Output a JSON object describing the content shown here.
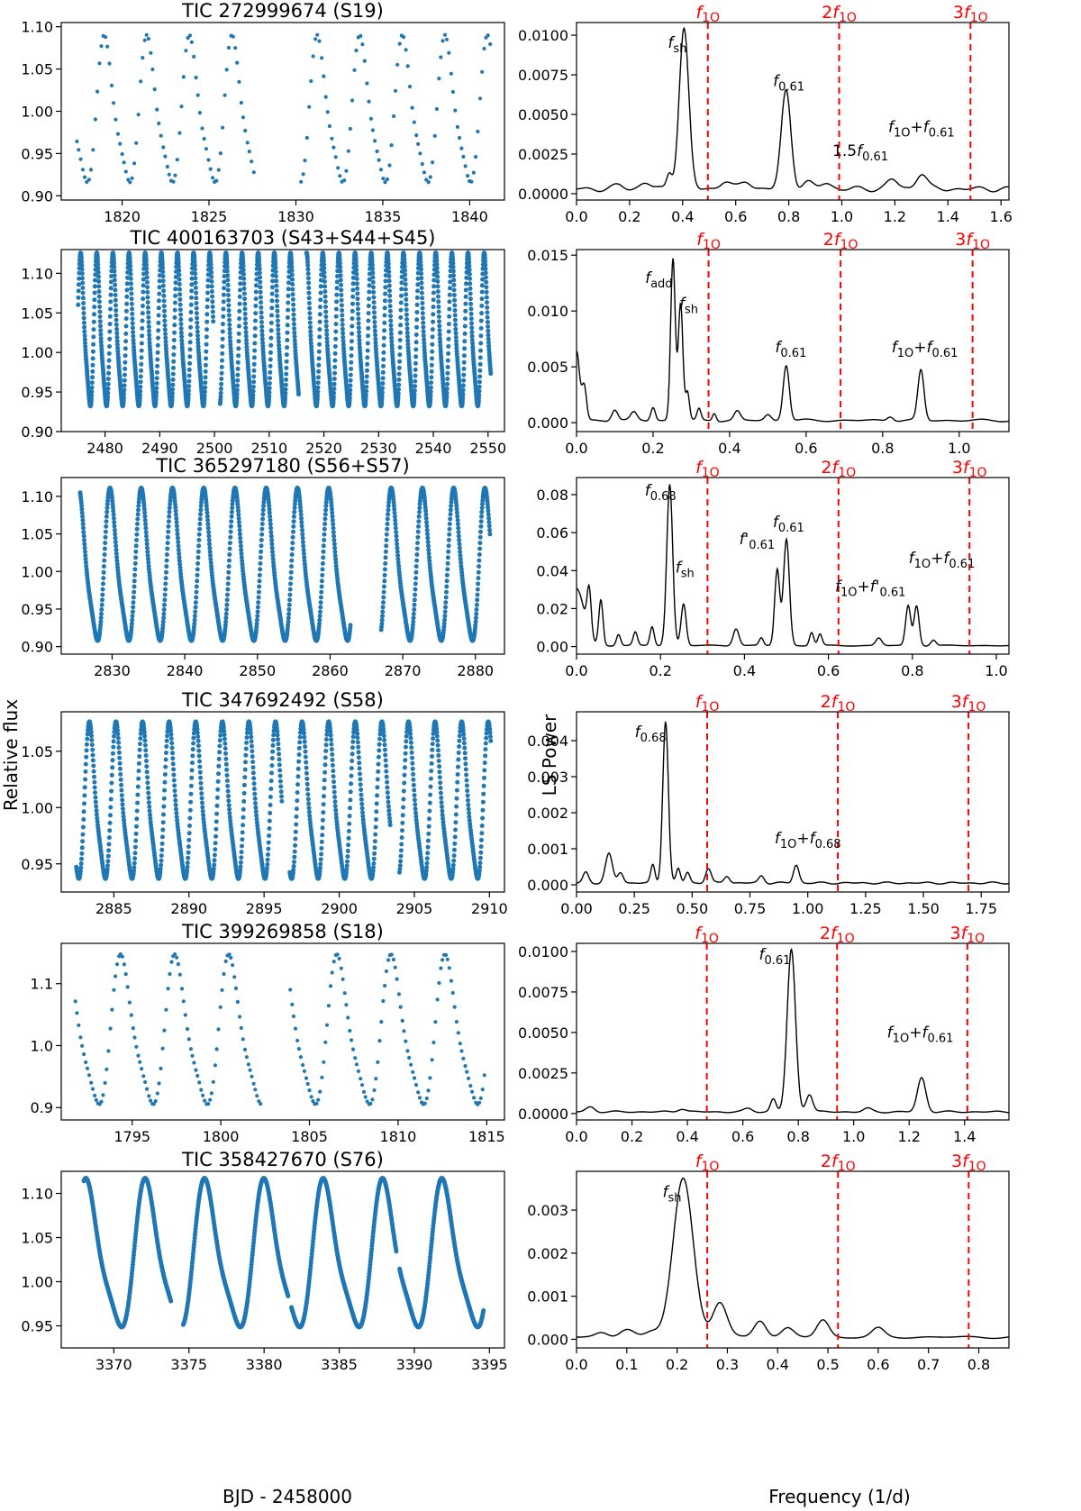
{
  "figure": {
    "ylabel_left": "Relative flux",
    "ylabel_right": "LS Power",
    "xlabel_left": "BJD - 2458000",
    "xlabel_right": "Frequency (1/d)",
    "point_color": "#1f77b4",
    "line_color": "#000000",
    "marker_color": "#ff0000"
  },
  "chart_data": [
    {
      "type": "scatter",
      "title": "TIC 272999674 (S19)",
      "xlim": [
        1816.5,
        1842
      ],
      "ylim": [
        0.895,
        1.105
      ],
      "xticks": [
        1820,
        1825,
        1830,
        1835,
        1840
      ],
      "yticks": [
        0.9,
        0.95,
        1.0,
        1.05,
        1.1
      ],
      "ytick_decimals": 2,
      "curve": {
        "t0": 1817.4,
        "t1": 1841.2,
        "period": 2.45,
        "mean": 0.995,
        "amp": 0.09,
        "phase": -1.4,
        "gaps": [
          [
            1827.6,
            1830.2
          ]
        ],
        "step": 0.12,
        "style": "sparse"
      }
    },
    {
      "type": "line",
      "title": "",
      "xlim": [
        0,
        1.63
      ],
      "ylim": [
        -0.0004,
        0.0108
      ],
      "xticks": [
        0,
        0.2,
        0.4,
        0.6,
        0.8,
        1.0,
        1.2,
        1.4,
        1.6
      ],
      "xtick_decimals": 1,
      "yticks": [
        0,
        0.0025,
        0.005,
        0.0075,
        0.01
      ],
      "ytick_decimals": 4,
      "baseline": 0.0003,
      "peaks": [
        [
          0.405,
          0.0101,
          0.018
        ],
        [
          0.79,
          0.0062,
          0.018
        ],
        [
          0.35,
          0.001,
          0.01
        ],
        [
          1.3,
          0.001,
          0.02
        ],
        [
          1.19,
          0.0006,
          0.02
        ],
        [
          0.56,
          0.0005,
          0.02
        ],
        [
          0.64,
          0.0005,
          0.02
        ],
        [
          0.87,
          0.0004,
          0.02
        ],
        [
          0.94,
          0.0004,
          0.02
        ],
        [
          0.26,
          0.0004,
          0.02
        ],
        [
          0.16,
          0.0002,
          0.02
        ]
      ],
      "markers": [
        0.495,
        0.99,
        1.485
      ],
      "marker_labels": [
        {
          "coef": "",
          "base": "f",
          "sub": "1O"
        },
        {
          "coef": "2",
          "base": "f",
          "sub": "1O"
        },
        {
          "coef": "3",
          "base": "f",
          "sub": "1O"
        }
      ],
      "annotations": [
        {
          "x": 0.38,
          "y": 0.0092,
          "parts": [
            {
              "base": "f",
              "sub": "sh"
            }
          ]
        },
        {
          "x": 0.8,
          "y": 0.0068,
          "parts": [
            {
              "base": "f",
              "sub": "0.61"
            }
          ]
        },
        {
          "x": 1.3,
          "y": 0.0039,
          "parts": [
            {
              "base": "f",
              "sub": "1O"
            },
            {
              "text": "+"
            },
            {
              "base": "f",
              "sub": "0.61"
            }
          ]
        },
        {
          "x": 1.07,
          "y": 0.0024,
          "parts": [
            {
              "coef": "1.5",
              "base": "f",
              "sub": "0.61"
            }
          ]
        }
      ]
    },
    {
      "type": "scatter",
      "title": "TIC 400163703 (S43+S44+S45)",
      "xlim": [
        2472,
        2553
      ],
      "ylim": [
        0.9,
        1.13
      ],
      "xticks": [
        2480,
        2490,
        2500,
        2510,
        2520,
        2530,
        2540,
        2550
      ],
      "yticks": [
        0.9,
        0.95,
        1.0,
        1.05,
        1.1
      ],
      "ytick_decimals": 2,
      "curve": {
        "t0": 2475.1,
        "t1": 2550.5,
        "period": 2.95,
        "mean": 1.02,
        "amp": 0.1,
        "phase": 0.3,
        "gaps": [
          [
            2499.8,
            2501.0
          ],
          [
            2515.4,
            2516.8
          ]
        ],
        "step": 0.035,
        "style": "dense"
      }
    },
    {
      "type": "line",
      "title": "",
      "xlim": [
        0,
        1.13
      ],
      "ylim": [
        -0.0008,
        0.0155
      ],
      "xticks": [
        0,
        0.2,
        0.4,
        0.6,
        0.8,
        1.0
      ],
      "xtick_decimals": 1,
      "yticks": [
        0,
        0.005,
        0.01,
        0.015
      ],
      "ytick_decimals": 3,
      "baseline": 0.0002,
      "peaks": [
        [
          0.252,
          0.0145,
          0.006
        ],
        [
          0.272,
          0.0105,
          0.006
        ],
        [
          0.548,
          0.005,
          0.008
        ],
        [
          0.9,
          0.0045,
          0.008
        ],
        [
          0.0,
          0.0062,
          0.008
        ],
        [
          0.02,
          0.003,
          0.006
        ],
        [
          0.29,
          0.0025,
          0.005
        ],
        [
          0.2,
          0.0012,
          0.006
        ],
        [
          0.32,
          0.001,
          0.005
        ],
        [
          0.42,
          0.0008,
          0.008
        ],
        [
          0.36,
          0.0007,
          0.005
        ],
        [
          0.1,
          0.001,
          0.008
        ],
        [
          0.15,
          0.0007,
          0.008
        ],
        [
          0.5,
          0.0005,
          0.008
        ],
        [
          0.82,
          0.0004,
          0.008
        ]
      ],
      "markers": [
        0.345,
        0.69,
        1.035
      ],
      "marker_labels": [
        {
          "coef": "",
          "base": "f",
          "sub": "1O"
        },
        {
          "coef": "2",
          "base": "f",
          "sub": "1O"
        },
        {
          "coef": "3",
          "base": "f",
          "sub": "1O"
        }
      ],
      "annotations": [
        {
          "x": 0.215,
          "y": 0.0125,
          "parts": [
            {
              "base": "f",
              "sub": "add"
            }
          ]
        },
        {
          "x": 0.293,
          "y": 0.0102,
          "parts": [
            {
              "base": "f",
              "sub": "sh"
            }
          ]
        },
        {
          "x": 0.56,
          "y": 0.0063,
          "parts": [
            {
              "base": "f",
              "sub": "0.61"
            }
          ]
        },
        {
          "x": 0.91,
          "y": 0.0063,
          "parts": [
            {
              "base": "f",
              "sub": "1O"
            },
            {
              "text": "+"
            },
            {
              "base": "f",
              "sub": "0.61"
            }
          ]
        }
      ]
    },
    {
      "type": "scatter",
      "title": "TIC 365297180 (S56+S57)",
      "xlim": [
        2823,
        2884
      ],
      "ylim": [
        0.89,
        1.125
      ],
      "xticks": [
        2830,
        2840,
        2850,
        2860,
        2870,
        2880
      ],
      "yticks": [
        0.9,
        0.95,
        1.0,
        1.05,
        1.1
      ],
      "ytick_decimals": 2,
      "curve": {
        "t0": 2825.6,
        "t1": 2882.0,
        "period": 4.3,
        "mean": 1.0,
        "amp": 0.105,
        "phase": 0.9,
        "gaps": [
          [
            2862.8,
            2867.0
          ]
        ],
        "step": 0.04,
        "style": "dense"
      }
    },
    {
      "type": "line",
      "title": "",
      "xlim": [
        0,
        1.03
      ],
      "ylim": [
        -0.004,
        0.089
      ],
      "xticks": [
        0,
        0.2,
        0.4,
        0.6,
        0.8,
        1.0
      ],
      "xtick_decimals": 1,
      "yticks": [
        0,
        0.02,
        0.04,
        0.06,
        0.08
      ],
      "ytick_decimals": 2,
      "baseline": 0.0005,
      "peaks": [
        [
          0.222,
          0.085,
          0.007
        ],
        [
          0.5,
          0.056,
          0.007
        ],
        [
          0.478,
          0.04,
          0.006
        ],
        [
          0.255,
          0.022,
          0.006
        ],
        [
          0.79,
          0.021,
          0.006
        ],
        [
          0.81,
          0.021,
          0.006
        ],
        [
          0.0,
          0.03,
          0.018
        ],
        [
          0.03,
          0.024,
          0.005
        ],
        [
          0.058,
          0.024,
          0.005
        ],
        [
          0.38,
          0.009,
          0.007
        ],
        [
          0.18,
          0.01,
          0.005
        ],
        [
          0.14,
          0.007,
          0.005
        ],
        [
          0.1,
          0.006,
          0.005
        ],
        [
          0.56,
          0.007,
          0.005
        ],
        [
          0.58,
          0.006,
          0.005
        ],
        [
          0.72,
          0.004,
          0.007
        ],
        [
          0.85,
          0.003,
          0.006
        ],
        [
          0.44,
          0.004,
          0.005
        ]
      ],
      "markers": [
        0.312,
        0.624,
        0.936
      ],
      "marker_labels": [
        {
          "coef": "",
          "base": "f",
          "sub": "1O"
        },
        {
          "coef": "2",
          "base": "f",
          "sub": "1O"
        },
        {
          "coef": "3",
          "base": "f",
          "sub": "1O"
        }
      ],
      "annotations": [
        {
          "x": 0.2,
          "y": 0.0795,
          "parts": [
            {
              "base": "f",
              "sub": "0.68"
            }
          ]
        },
        {
          "x": 0.258,
          "y": 0.039,
          "parts": [
            {
              "base": "f",
              "sub": "sh"
            }
          ]
        },
        {
          "x": 0.505,
          "y": 0.063,
          "parts": [
            {
              "base": "f",
              "sub": "0.61"
            }
          ]
        },
        {
          "x": 0.43,
          "y": 0.054,
          "parts": [
            {
              "base": "f'",
              "sub": "0.61"
            }
          ]
        },
        {
          "x": 0.87,
          "y": 0.044,
          "parts": [
            {
              "base": "f",
              "sub": "1O"
            },
            {
              "text": "+"
            },
            {
              "base": "f",
              "sub": "0.61"
            }
          ]
        },
        {
          "x": 0.7,
          "y": 0.029,
          "parts": [
            {
              "base": "f",
              "sub": "1O"
            },
            {
              "text": "+"
            },
            {
              "base": "f'",
              "sub": "0.61"
            }
          ]
        }
      ]
    },
    {
      "type": "scatter",
      "title": "TIC 347692492 (S58)",
      "xlim": [
        2881.5,
        2911
      ],
      "ylim": [
        0.925,
        1.085
      ],
      "xticks": [
        2885,
        2890,
        2895,
        2900,
        2905,
        2910
      ],
      "yticks": [
        0.95,
        1.0,
        1.05
      ],
      "ytick_decimals": 2,
      "curve": {
        "t0": 2882.5,
        "t1": 2910.1,
        "period": 1.77,
        "mean": 1.0,
        "amp": 0.072,
        "phase": 1.2,
        "gaps": [
          [
            2896.2,
            2896.7
          ],
          [
            2903.4,
            2904.0
          ]
        ],
        "step": 0.022,
        "style": "dense"
      }
    },
    {
      "type": "line",
      "title": "",
      "xlim": [
        0,
        1.87
      ],
      "ylim": [
        -0.0002,
        0.0048
      ],
      "xticks": [
        0,
        0.25,
        0.5,
        0.75,
        1.0,
        1.25,
        1.5,
        1.75
      ],
      "xtick_decimals": 2,
      "yticks": [
        0,
        0.001,
        0.002,
        0.003,
        0.004
      ],
      "ytick_decimals": 3,
      "baseline": 5e-05,
      "peaks": [
        [
          0.385,
          0.0045,
          0.012
        ],
        [
          0.14,
          0.0008,
          0.015
        ],
        [
          0.95,
          0.0005,
          0.012
        ],
        [
          0.04,
          0.0003,
          0.012
        ],
        [
          0.33,
          0.0005,
          0.009
        ],
        [
          0.44,
          0.0004,
          0.009
        ],
        [
          0.57,
          0.0004,
          0.012
        ],
        [
          0.19,
          0.0003,
          0.012
        ],
        [
          0.65,
          0.0002,
          0.012
        ],
        [
          0.8,
          0.0002,
          0.012
        ],
        [
          0.48,
          0.0003,
          0.01
        ]
      ],
      "markers": [
        0.565,
        1.13,
        1.695
      ],
      "marker_labels": [
        {
          "coef": "",
          "base": "f",
          "sub": "1O"
        },
        {
          "coef": "2",
          "base": "f",
          "sub": "1O"
        },
        {
          "coef": "3",
          "base": "f",
          "sub": "1O"
        }
      ],
      "annotations": [
        {
          "x": 0.32,
          "y": 0.0041,
          "parts": [
            {
              "base": "f",
              "sub": "0.68"
            }
          ]
        },
        {
          "x": 1.0,
          "y": 0.00115,
          "parts": [
            {
              "base": "f",
              "sub": "1O"
            },
            {
              "text": "+"
            },
            {
              "base": "f",
              "sub": "0.68"
            }
          ]
        }
      ]
    },
    {
      "type": "scatter",
      "title": "TIC 399269858 (S18)",
      "xlim": [
        1791,
        1816
      ],
      "ylim": [
        0.88,
        1.165
      ],
      "xticks": [
        1795,
        1800,
        1805,
        1810,
        1815
      ],
      "yticks": [
        0.9,
        1.0,
        1.1
      ],
      "ytick_decimals": 1,
      "curve": {
        "t0": 1791.8,
        "t1": 1814.9,
        "period": 3.05,
        "mean": 1.015,
        "amp": 0.125,
        "phase": -0.6,
        "gaps": [
          [
            1802.3,
            1803.9
          ]
        ],
        "step": 0.1,
        "style": "sparse"
      }
    },
    {
      "type": "line",
      "title": "",
      "xlim": [
        0,
        1.56
      ],
      "ylim": [
        -0.0004,
        0.0105
      ],
      "xticks": [
        0,
        0.2,
        0.4,
        0.6,
        0.8,
        1.0,
        1.2,
        1.4
      ],
      "xtick_decimals": 1,
      "yticks": [
        0,
        0.0025,
        0.005,
        0.0075,
        0.01
      ],
      "ytick_decimals": 4,
      "baseline": 0.0001,
      "peaks": [
        [
          0.775,
          0.01,
          0.015
        ],
        [
          1.245,
          0.0021,
          0.015
        ],
        [
          0.71,
          0.0008,
          0.01
        ],
        [
          0.84,
          0.0011,
          0.012
        ],
        [
          0.05,
          0.0003,
          0.015
        ],
        [
          0.38,
          0.0002,
          0.015
        ],
        [
          0.62,
          0.0002,
          0.015
        ],
        [
          1.05,
          0.0002,
          0.015
        ]
      ],
      "markers": [
        0.47,
        0.94,
        1.41
      ],
      "marker_labels": [
        {
          "coef": "",
          "base": "f",
          "sub": "1O"
        },
        {
          "coef": "2",
          "base": "f",
          "sub": "1O"
        },
        {
          "coef": "3",
          "base": "f",
          "sub": "1O"
        }
      ],
      "annotations": [
        {
          "x": 0.715,
          "y": 0.0095,
          "parts": [
            {
              "base": "f",
              "sub": "0.61"
            }
          ]
        },
        {
          "x": 1.24,
          "y": 0.0047,
          "parts": [
            {
              "base": "f",
              "sub": "1O"
            },
            {
              "text": "+"
            },
            {
              "base": "f",
              "sub": "0.61"
            }
          ]
        }
      ]
    },
    {
      "type": "scatter",
      "title": "TIC 358427670 (S76)",
      "xlim": [
        3366.5,
        3396
      ],
      "ylim": [
        0.925,
        1.125
      ],
      "xticks": [
        3370,
        3375,
        3380,
        3385,
        3390,
        3395
      ],
      "yticks": [
        0.95,
        1.0,
        1.05,
        1.1
      ],
      "ytick_decimals": 2,
      "curve": {
        "t0": 3368.0,
        "t1": 3394.6,
        "period": 3.95,
        "mean": 1.025,
        "amp": 0.087,
        "phase": -3.0,
        "gaps": [
          [
            3373.8,
            3374.6
          ],
          [
            3381.6,
            3381.8
          ],
          [
            3388.8,
            3389.0
          ]
        ],
        "step": 0.02,
        "style": "dense"
      }
    },
    {
      "type": "line",
      "title": "",
      "xlim": [
        0,
        0.86
      ],
      "ylim": [
        -0.0002,
        0.0039
      ],
      "xticks": [
        0,
        0.1,
        0.2,
        0.3,
        0.4,
        0.5,
        0.6,
        0.7,
        0.8
      ],
      "xtick_decimals": 1,
      "yticks": [
        0,
        0.001,
        0.002,
        0.003
      ],
      "ytick_decimals": 3,
      "baseline": 5e-05,
      "peaks": [
        [
          0.212,
          0.0037,
          0.02
        ],
        [
          0.285,
          0.0008,
          0.014
        ],
        [
          0.1,
          0.0002,
          0.014
        ],
        [
          0.365,
          0.0004,
          0.012
        ],
        [
          0.42,
          0.0002,
          0.012
        ],
        [
          0.49,
          0.0004,
          0.012
        ],
        [
          0.6,
          0.0002,
          0.012
        ],
        [
          0.05,
          0.0001,
          0.012
        ],
        [
          0.15,
          0.0001,
          0.012
        ]
      ],
      "markers": [
        0.26,
        0.52,
        0.78
      ],
      "marker_labels": [
        {
          "coef": "",
          "base": "f",
          "sub": "1O"
        },
        {
          "coef": "2",
          "base": "f",
          "sub": "1O"
        },
        {
          "coef": "3",
          "base": "f",
          "sub": "1O"
        }
      ],
      "annotations": [
        {
          "x": 0.19,
          "y": 0.0033,
          "parts": [
            {
              "base": "f",
              "sub": "sh"
            }
          ]
        }
      ]
    }
  ]
}
